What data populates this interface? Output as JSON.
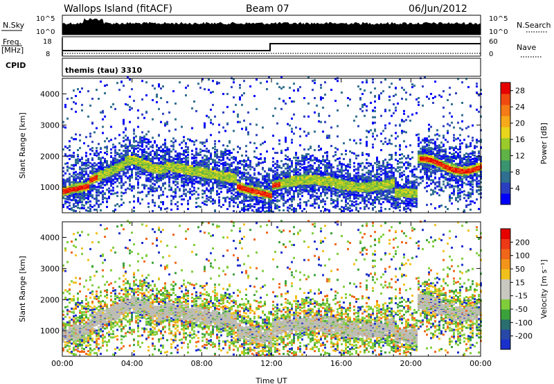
{
  "header": {
    "station": "Wallops Island (fitACF)",
    "beam": "Beam 07",
    "date": "06/Jun/2012"
  },
  "top_panels": {
    "nsky_label": "N.Sky",
    "nsky_ticks": [
      "10^5",
      "10^0"
    ],
    "nsearch_label": "N.Search",
    "nsearch_ticks": [
      "10^5",
      "10^0"
    ],
    "freq_label": "Freq.",
    "freq_unit": "[MHz]",
    "freq_ticks": [
      "18",
      "8"
    ],
    "nave_label": "Nave",
    "nave_ticks": [
      "60",
      "0"
    ],
    "cpid_label": "CPID",
    "cpid_value": "themis (tau) 3310"
  },
  "chart_data": [
    {
      "type": "heatmap",
      "name": "power",
      "xlabel": "",
      "ylabel": "Slant Range [km]",
      "x_ticks": [
        "00:00",
        "04:00",
        "08:00",
        "12:00",
        "16:00",
        "20:00",
        "00:00"
      ],
      "y_ticks": [
        "1000",
        "2000",
        "3000",
        "4000"
      ],
      "ylim": [
        180,
        4500
      ],
      "colorbar": {
        "label": "Power [dB]",
        "ticks": [
          "4",
          "8",
          "12",
          "16",
          "20",
          "24",
          "28"
        ],
        "range": [
          0,
          30
        ],
        "colors": [
          "#0000ff",
          "#2a3fbf",
          "#2f6f8f",
          "#3a9470",
          "#5fb246",
          "#9acb2a",
          "#e8d51c",
          "#f6a91a",
          "#f47b16",
          "#f04a10",
          "#e60000"
        ]
      }
    },
    {
      "type": "heatmap",
      "name": "velocity",
      "xlabel": "Time UT",
      "ylabel": "Slant Range [km]",
      "x_ticks": [
        "00:00",
        "04:00",
        "08:00",
        "12:00",
        "16:00",
        "20:00",
        "00:00"
      ],
      "y_ticks": [
        "1000",
        "2000",
        "3000",
        "4000"
      ],
      "ylim": [
        180,
        4500
      ],
      "colorbar": {
        "label": "Velocity [m s⁻¹]",
        "ticks": [
          "200",
          "100",
          "50",
          "15",
          "-15",
          "-50",
          "-100",
          "-200"
        ],
        "range": [
          -250,
          250
        ],
        "colors": [
          "#1a2fcc",
          "#2848a8",
          "#2a6f70",
          "#3aa23a",
          "#7fcd3a",
          "#c8c8c0",
          "#c8c8c0",
          "#f2c01c",
          "#f3941a",
          "#f0661a",
          "#ed3a16",
          "#e60000"
        ]
      }
    }
  ],
  "colors": {
    "ground_scatter": "#bdbdb5"
  }
}
